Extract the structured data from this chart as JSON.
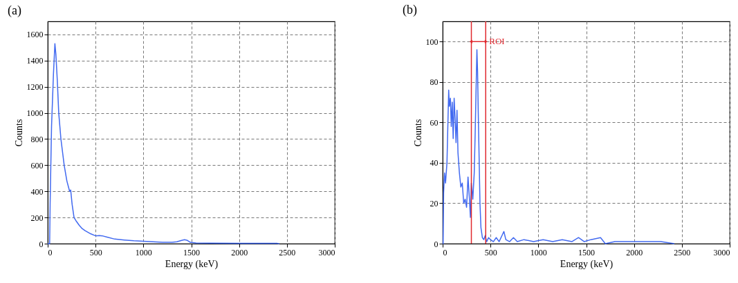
{
  "chart_data": [
    {
      "type": "line",
      "title": "(a)",
      "xlabel": "Energy (keV)",
      "ylabel": "Counts",
      "xlim": [
        0,
        3000
      ],
      "ylim": [
        0,
        1700
      ],
      "xticks": [
        0,
        500,
        1000,
        1500,
        2000,
        2500,
        3000
      ],
      "yticks": [
        0,
        200,
        400,
        600,
        800,
        1000,
        1200,
        1400,
        1600
      ],
      "grid": true,
      "line_style": "solid",
      "series": [
        {
          "color": "#4169f0",
          "x": [
            0,
            20,
            25,
            40,
            60,
            75,
            85,
            100,
            115,
            138,
            172,
            200,
            229,
            240,
            255,
            275,
            300,
            330,
            360,
            390,
            450,
            500,
            540,
            570,
            620,
            700,
            800,
            900,
            1000,
            1100,
            1200,
            1300,
            1350,
            1400,
            1430,
            1460,
            1490,
            1550,
            1700,
            2000,
            2400,
            2420
          ],
          "values": [
            0,
            0,
            300,
            900,
            1300,
            1530,
            1450,
            1250,
            1000,
            800,
            600,
            480,
            400,
            410,
            300,
            200,
            170,
            140,
            115,
            100,
            75,
            60,
            62,
            60,
            50,
            35,
            28,
            22,
            18,
            14,
            10,
            10,
            15,
            25,
            30,
            25,
            10,
            5,
            4,
            3,
            2,
            0
          ]
        }
      ]
    },
    {
      "type": "line",
      "title": "(b)",
      "xlabel": "Energy (keV)",
      "ylabel": "Counts",
      "xlim": [
        0,
        3000
      ],
      "ylim": [
        0,
        110
      ],
      "xticks": [
        0,
        500,
        1000,
        1500,
        2000,
        2500,
        3000
      ],
      "yticks": [
        0,
        20,
        40,
        60,
        80,
        100
      ],
      "grid": true,
      "line_style": "solid",
      "series": [
        {
          "color": "#4169f0",
          "x": [
            0,
            5,
            10,
            20,
            30,
            45,
            55,
            63,
            70,
            81,
            90,
            100,
            110,
            120,
            130,
            140,
            150,
            160,
            175,
            190,
            205,
            220,
            235,
            250,
            265,
            280,
            290,
            300,
            315,
            330,
            340,
            350,
            358,
            365,
            372,
            380,
            390,
            400,
            415,
            430,
            445,
            460,
            480,
            500,
            530,
            560,
            590,
            620,
            640,
            660,
            700,
            740,
            780,
            850,
            950,
            1050,
            1150,
            1250,
            1350,
            1420,
            1480,
            1550,
            1650,
            1700,
            1800,
            1950,
            2150,
            2280,
            2420
          ],
          "values": [
            0,
            0,
            25,
            35,
            30,
            40,
            60,
            76,
            68,
            72,
            58,
            70,
            52,
            72,
            62,
            50,
            66,
            45,
            35,
            28,
            30,
            20,
            22,
            18,
            33,
            22,
            13,
            30,
            22,
            35,
            55,
            78,
            96,
            85,
            65,
            45,
            20,
            8,
            3,
            2,
            4,
            1,
            3,
            2,
            1,
            3,
            1,
            4,
            6,
            2,
            1,
            3,
            1,
            2,
            1,
            2,
            1,
            2,
            1,
            3,
            1,
            2,
            3,
            0,
            1,
            1,
            1,
            1,
            0
          ]
        }
      ],
      "ref_lines": [
        {
          "axis": "x",
          "value": 300,
          "color": "#e0282e"
        },
        {
          "axis": "x",
          "value": 450,
          "color": "#e0282e"
        }
      ],
      "annotations": [
        {
          "text": "ROI",
          "x": 450,
          "y": 100
        }
      ]
    }
  ]
}
